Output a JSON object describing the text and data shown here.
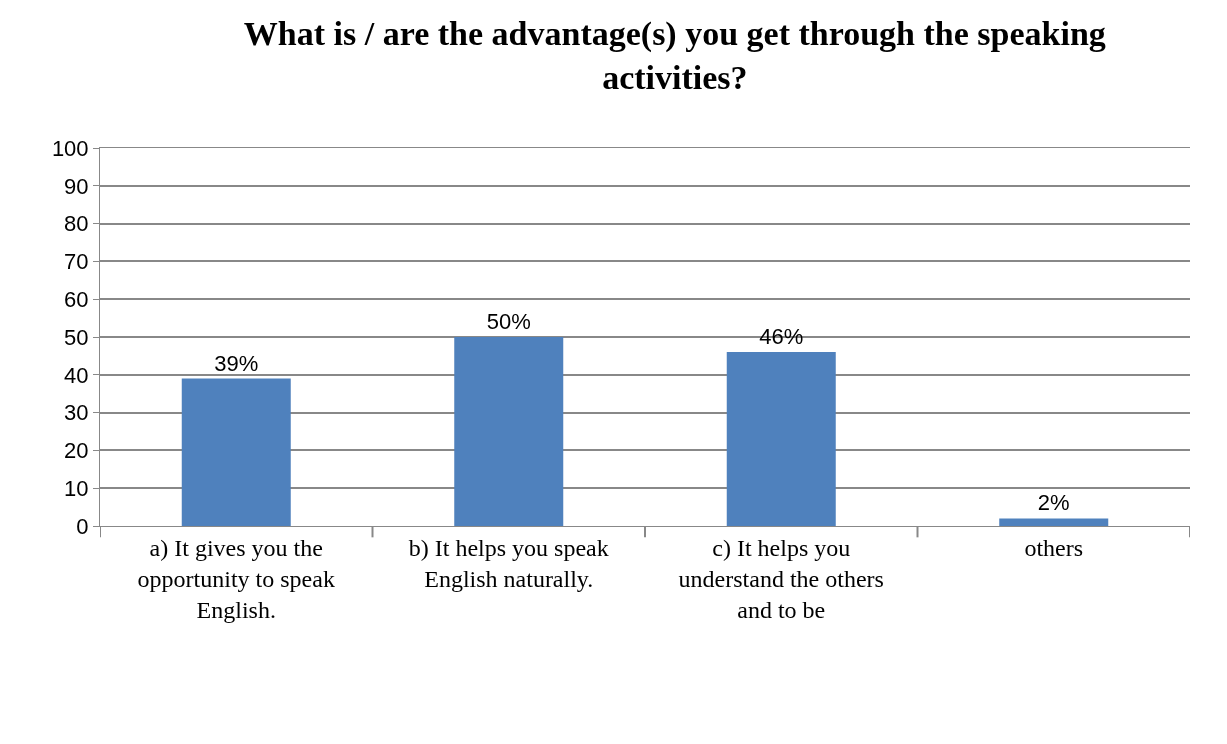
{
  "chart_data": {
    "type": "bar",
    "title": "What is / are the advantage(s) you get through the speaking activities?",
    "categories": [
      "a) It gives you the opportunity to speak English.",
      "b) It helps you speak English naturally.",
      "c) It helps you understand the others and to be",
      "others"
    ],
    "values": [
      39,
      50,
      46,
      2
    ],
    "value_labels": [
      "39%",
      "50%",
      "46%",
      "2%"
    ],
    "color": "#4f81bd",
    "ylim": [
      0,
      100
    ],
    "yticks": [
      0,
      10,
      20,
      30,
      40,
      50,
      60,
      70,
      80,
      90,
      100
    ],
    "grid": "y"
  }
}
